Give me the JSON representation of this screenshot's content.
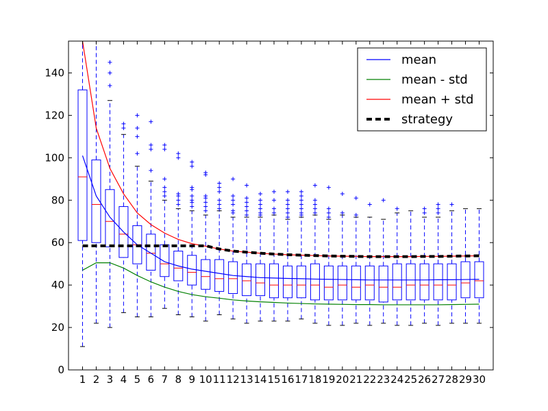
{
  "chart_data": {
    "type": "box",
    "title": "",
    "xlabel": "",
    "ylabel": "",
    "x": [
      1,
      2,
      3,
      4,
      5,
      6,
      7,
      8,
      9,
      10,
      11,
      12,
      13,
      14,
      15,
      16,
      17,
      18,
      19,
      20,
      21,
      22,
      23,
      24,
      25,
      26,
      27,
      28,
      29,
      30
    ],
    "xtick_labels": [
      "1",
      "2",
      "3",
      "4",
      "5",
      "6",
      "7",
      "8",
      "9",
      "10",
      "11",
      "12",
      "13",
      "14",
      "15",
      "16",
      "17",
      "18",
      "19",
      "20",
      "21",
      "22",
      "23",
      "24",
      "25",
      "26",
      "27",
      "28",
      "29",
      "30"
    ],
    "ylim": [
      0,
      155
    ],
    "yticks": [
      0,
      20,
      40,
      60,
      80,
      100,
      120,
      140
    ],
    "ytick_labels": [
      "0",
      "20",
      "40",
      "60",
      "80",
      "100",
      "120",
      "140"
    ],
    "boxes": [
      {
        "whislo": 11,
        "q1": 61,
        "med": 91,
        "q3": 132,
        "whishi": 155,
        "fliers": []
      },
      {
        "whislo": 22,
        "q1": 60,
        "med": 78,
        "q3": 99,
        "whishi": 155,
        "fliers": []
      },
      {
        "whislo": 20,
        "q1": 58,
        "med": 70,
        "q3": 85,
        "whishi": 127,
        "fliers": [
          134,
          140,
          145
        ]
      },
      {
        "whislo": 27,
        "q1": 53,
        "med": 64,
        "q3": 77,
        "whishi": 111,
        "fliers": [
          114,
          116
        ]
      },
      {
        "whislo": 25,
        "q1": 50,
        "med": 59,
        "q3": 68,
        "whishi": 96,
        "fliers": [
          102,
          110,
          114,
          120
        ]
      },
      {
        "whislo": 25,
        "q1": 47,
        "med": 55,
        "q3": 64,
        "whishi": 89,
        "fliers": [
          94,
          104,
          106,
          117
        ]
      },
      {
        "whislo": 29,
        "q1": 44,
        "med": 50,
        "q3": 59,
        "whishi": 80,
        "fliers": [
          82,
          84,
          86,
          90,
          104,
          106
        ]
      },
      {
        "whislo": 26,
        "q1": 42,
        "med": 48,
        "q3": 56,
        "whishi": 76,
        "fliers": [
          78,
          80,
          82,
          83,
          100,
          102
        ]
      },
      {
        "whislo": 25,
        "q1": 40,
        "med": 46,
        "q3": 54,
        "whishi": 75,
        "fliers": [
          77,
          79,
          80,
          82,
          85,
          86,
          96,
          98
        ]
      },
      {
        "whislo": 23,
        "q1": 38,
        "med": 44,
        "q3": 52,
        "whishi": 73,
        "fliers": [
          75,
          77,
          79,
          81,
          82,
          92,
          93
        ]
      },
      {
        "whislo": 26,
        "q1": 37,
        "med": 43,
        "q3": 52,
        "whishi": 75,
        "fliers": [
          76,
          78,
          80,
          84,
          86,
          88
        ]
      },
      {
        "whislo": 24,
        "q1": 36,
        "med": 43,
        "q3": 51,
        "whishi": 72,
        "fliers": [
          74,
          75,
          78,
          80,
          82,
          90
        ]
      },
      {
        "whislo": 22,
        "q1": 35,
        "med": 42,
        "q3": 50,
        "whishi": 72,
        "fliers": [
          73,
          75,
          77,
          79,
          81,
          87
        ]
      },
      {
        "whislo": 23,
        "q1": 35,
        "med": 41,
        "q3": 50,
        "whishi": 72,
        "fliers": [
          73,
          74,
          76,
          78,
          80,
          83
        ]
      },
      {
        "whislo": 23,
        "q1": 34,
        "med": 40,
        "q3": 50,
        "whishi": 73,
        "fliers": [
          74,
          76,
          80,
          84
        ]
      },
      {
        "whislo": 23,
        "q1": 34,
        "med": 40,
        "q3": 49,
        "whishi": 71,
        "fliers": [
          72,
          74,
          76,
          78,
          80,
          84
        ]
      },
      {
        "whislo": 24,
        "q1": 34,
        "med": 40,
        "q3": 49,
        "whishi": 72,
        "fliers": [
          73,
          74,
          76,
          78,
          80,
          82,
          84
        ]
      },
      {
        "whislo": 22,
        "q1": 33,
        "med": 40,
        "q3": 50,
        "whishi": 73,
        "fliers": [
          74,
          76,
          78,
          80,
          87
        ]
      },
      {
        "whislo": 21,
        "q1": 33,
        "med": 39,
        "q3": 49,
        "whishi": 71,
        "fliers": [
          72,
          74,
          76,
          86
        ]
      },
      {
        "whislo": 21,
        "q1": 33,
        "med": 40,
        "q3": 49,
        "whishi": 73,
        "fliers": [
          74,
          83
        ]
      },
      {
        "whislo": 22,
        "q1": 33,
        "med": 39,
        "q3": 49,
        "whishi": 72,
        "fliers": [
          73,
          81
        ]
      },
      {
        "whislo": 21,
        "q1": 33,
        "med": 40,
        "q3": 49,
        "whishi": 72,
        "fliers": [
          78
        ]
      },
      {
        "whislo": 22,
        "q1": 32,
        "med": 39,
        "q3": 49,
        "whishi": 71,
        "fliers": [
          80
        ]
      },
      {
        "whislo": 21,
        "q1": 33,
        "med": 39,
        "q3": 50,
        "whishi": 74,
        "fliers": [
          76
        ]
      },
      {
        "whislo": 21,
        "q1": 33,
        "med": 40,
        "q3": 50,
        "whishi": 75,
        "fliers": []
      },
      {
        "whislo": 22,
        "q1": 33,
        "med": 40,
        "q3": 50,
        "whishi": 72,
        "fliers": [
          74,
          76
        ]
      },
      {
        "whislo": 21,
        "q1": 33,
        "med": 40,
        "q3": 50,
        "whishi": 72,
        "fliers": [
          74,
          76,
          78
        ]
      },
      {
        "whislo": 22,
        "q1": 33,
        "med": 40,
        "q3": 50,
        "whishi": 75,
        "fliers": [
          78
        ]
      },
      {
        "whislo": 22,
        "q1": 34,
        "med": 41,
        "q3": 51,
        "whishi": 76,
        "fliers": []
      },
      {
        "whislo": 22,
        "q1": 34,
        "med": 42,
        "q3": 51,
        "whishi": 76,
        "fliers": []
      }
    ],
    "series": [
      {
        "name": "mean",
        "color": "#0000ff",
        "style": "solid",
        "values": [
          101,
          82,
          72,
          65,
          59,
          55,
          51,
          49,
          47.5,
          46.5,
          45.5,
          44.5,
          44,
          43.5,
          43.3,
          43.1,
          43,
          42.8,
          42.7,
          42.6,
          42.5,
          42.4,
          42.4,
          42.4,
          42.4,
          42.4,
          42.5,
          42.5,
          42.6,
          42.7
        ]
      },
      {
        "name": "mean - std",
        "color": "#008000",
        "style": "solid",
        "values": [
          47,
          50.5,
          50.5,
          48,
          44.5,
          41.5,
          39,
          37,
          35.5,
          34.5,
          33.8,
          33,
          32.5,
          32.1,
          31.8,
          31.5,
          31.3,
          31.1,
          31,
          30.9,
          30.8,
          30.8,
          30.7,
          30.7,
          30.7,
          30.7,
          30.7,
          30.8,
          30.9,
          31
        ]
      },
      {
        "name": "mean + std",
        "color": "#ff0000",
        "style": "solid",
        "values": [
          155,
          114,
          95,
          83,
          74,
          68.5,
          64.5,
          61.5,
          59.5,
          58.3,
          57,
          56,
          55.5,
          55,
          54.6,
          54.3,
          54.1,
          53.9,
          53.7,
          53.6,
          53.5,
          53.4,
          53.4,
          53.4,
          53.4,
          53.5,
          53.5,
          53.6,
          53.7,
          53.8
        ]
      },
      {
        "name": "strategy",
        "color": "#000000",
        "style": "dashed",
        "values": [
          58.5,
          58.5,
          58.5,
          58.5,
          58.5,
          58.5,
          58.5,
          58.5,
          58.5,
          58.5,
          57,
          56,
          55.5,
          55,
          54.6,
          54.3,
          54.1,
          53.9,
          53.7,
          53.6,
          53.5,
          53.4,
          53.4,
          53.4,
          53.4,
          53.5,
          53.5,
          53.6,
          53.7,
          53.8
        ]
      }
    ],
    "box_color": "#0000ff",
    "median_color": "#ff0000",
    "grid": false,
    "legend_position": "top-right"
  }
}
